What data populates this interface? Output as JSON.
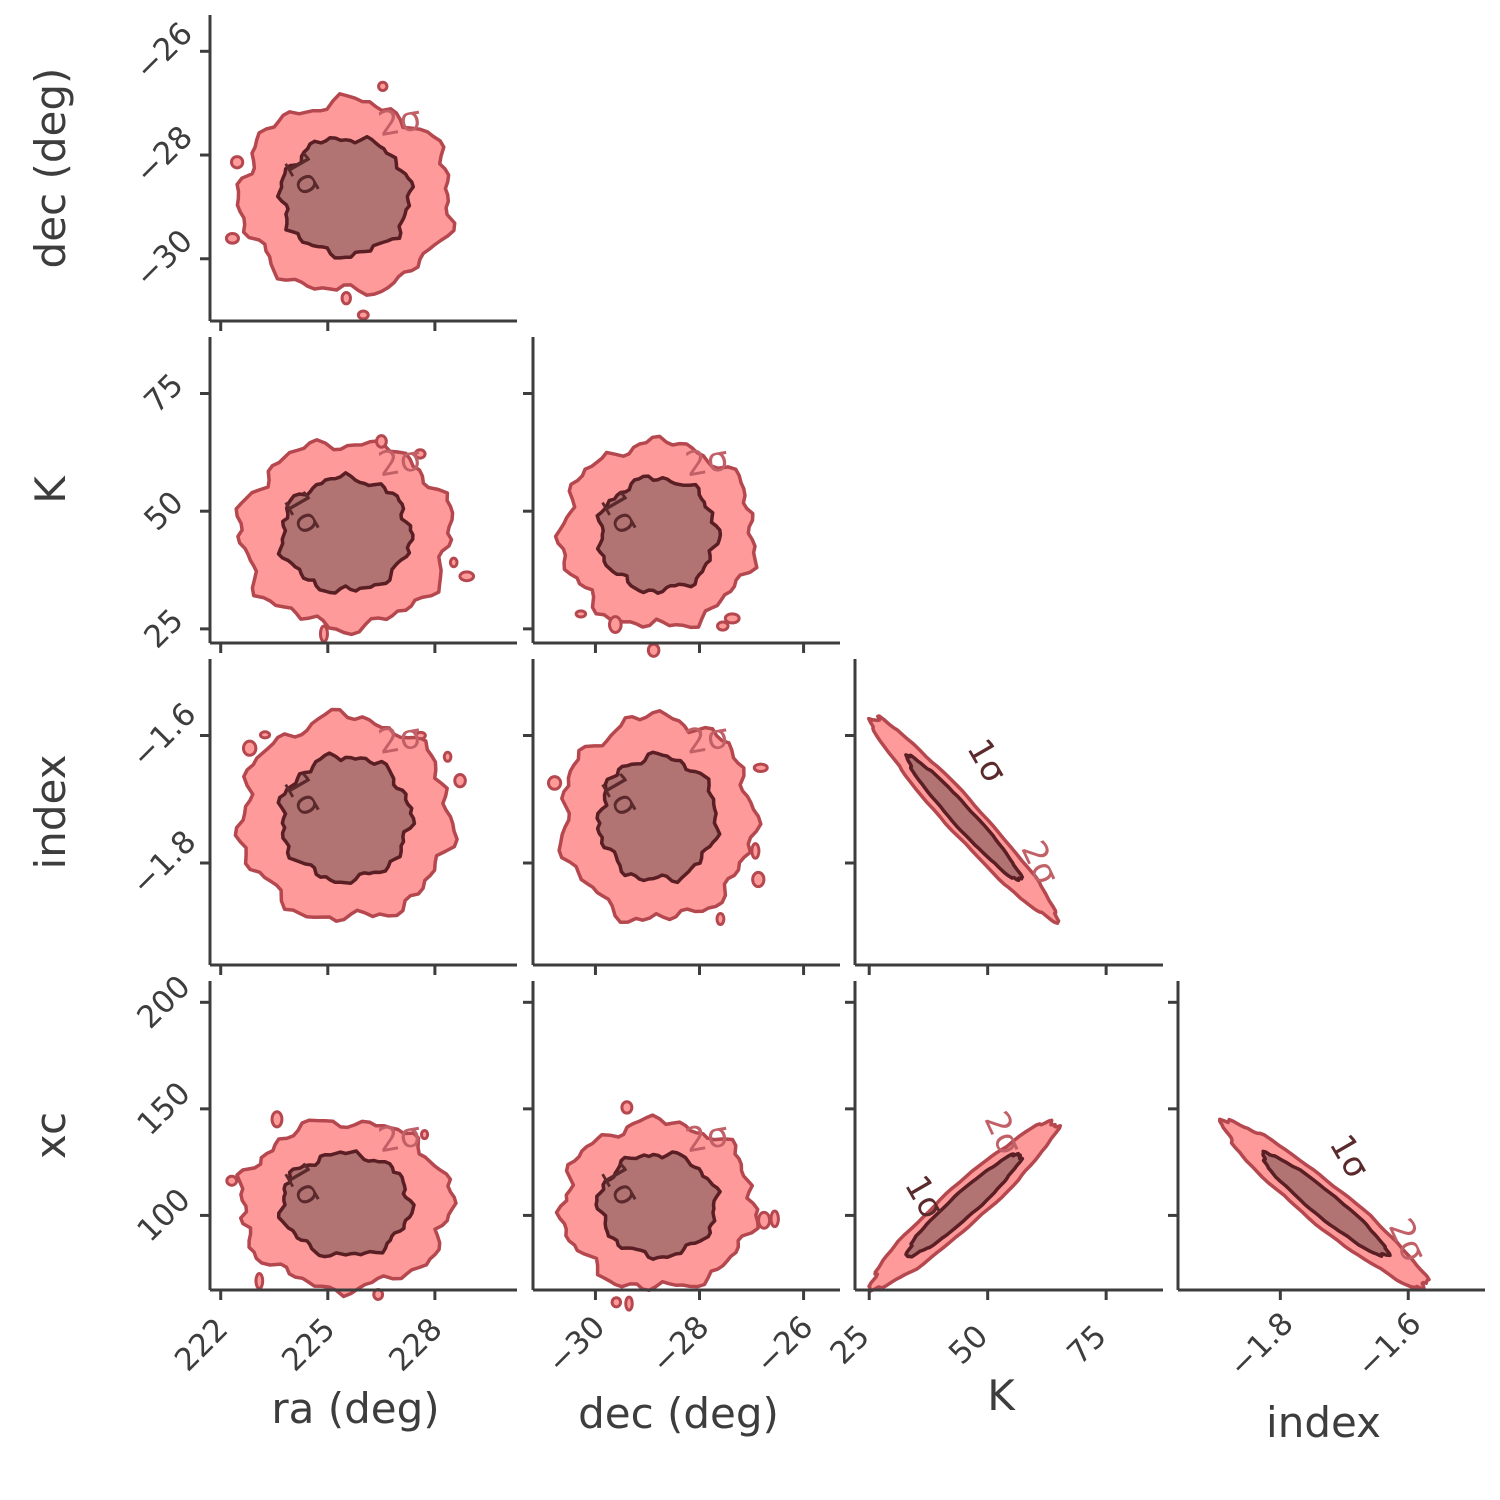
{
  "chart_data": {
    "type": "corner",
    "colors": {
      "outer_fill": "#ff9a9a",
      "outer_line": "#b5484f",
      "inner_fill": "#b27373",
      "inner_line": "#5a1f24",
      "label_outer": "#c26068",
      "label_inner": "#5a2a2c",
      "axis": "#3d3d3d"
    },
    "contour_levels": [
      "1σ",
      "2σ"
    ],
    "parameters": [
      {
        "name": "ra",
        "xlabel": "ra (deg)",
        "range": [
          221.7,
          230.3
        ],
        "ticks": [
          222,
          225,
          228
        ],
        "tick_labels": [
          "222",
          "225",
          "228"
        ],
        "mean": 225.5,
        "sigma": 1.2
      },
      {
        "name": "dec",
        "xlabel": "dec (deg)",
        "ylabel": "dec (deg)",
        "range": [
          -31.2,
          -25.3
        ],
        "ticks": [
          -30,
          -28,
          -26
        ],
        "tick_labels": [
          "−30",
          "−28",
          "−26"
        ],
        "mean": -28.8,
        "sigma": 0.75
      },
      {
        "name": "K",
        "xlabel": "K",
        "ylabel": "K",
        "range": [
          22,
          87
        ],
        "ticks": [
          25,
          50,
          75
        ],
        "tick_labels": [
          "25",
          "50",
          "75"
        ],
        "mean": 45,
        "sigma": 8
      },
      {
        "name": "index",
        "xlabel": "index",
        "ylabel": "index",
        "range": [
          -1.96,
          -1.48
        ],
        "ticks": [
          -1.8,
          -1.6
        ],
        "tick_labels": [
          "−1.8",
          "−1.6"
        ],
        "mean": -1.73,
        "sigma": 0.065
      },
      {
        "name": "xc",
        "ylabel": "xc",
        "range": [
          65,
          210
        ],
        "ticks": [
          100,
          150,
          200
        ],
        "tick_labels": [
          "100",
          "150",
          "200"
        ],
        "mean": 105,
        "sigma": 16
      }
    ],
    "panels": [
      {
        "x": "ra",
        "y": "dec",
        "correlation": 0.0,
        "labels_inner": [
          "1σ"
        ],
        "labels_outer": [
          "2σ"
        ]
      },
      {
        "x": "ra",
        "y": "K",
        "correlation": 0.0,
        "labels_inner": [
          "1σ"
        ],
        "labels_outer": [
          "2σ"
        ]
      },
      {
        "x": "dec",
        "y": "K",
        "correlation": 0.0,
        "labels_inner": [
          "1σ"
        ],
        "labels_outer": [
          "2σ"
        ]
      },
      {
        "x": "ra",
        "y": "index",
        "correlation": 0.0,
        "labels_inner": [
          "1σ"
        ],
        "labels_outer": [
          "2σ"
        ]
      },
      {
        "x": "dec",
        "y": "index",
        "correlation": 0.0,
        "labels_inner": [
          "1σ"
        ],
        "labels_outer": [
          "2σ"
        ]
      },
      {
        "x": "K",
        "y": "index",
        "correlation": -0.97,
        "labels_inner": [
          "1σ"
        ],
        "labels_outer": [
          "2σ"
        ]
      },
      {
        "x": "ra",
        "y": "xc",
        "correlation": 0.0,
        "labels_inner": [
          "1σ"
        ],
        "labels_outer": [
          "2σ"
        ]
      },
      {
        "x": "dec",
        "y": "xc",
        "correlation": 0.0,
        "labels_inner": [
          "1σ"
        ],
        "labels_outer": [
          "2σ"
        ]
      },
      {
        "x": "K",
        "y": "xc",
        "correlation": 0.95,
        "labels_inner": [
          "1σ"
        ],
        "labels_outer": [
          "2σ"
        ]
      },
      {
        "x": "index",
        "y": "xc",
        "correlation": -0.95,
        "labels_inner": [
          "1σ"
        ],
        "labels_outer": [
          "2σ"
        ]
      }
    ]
  }
}
